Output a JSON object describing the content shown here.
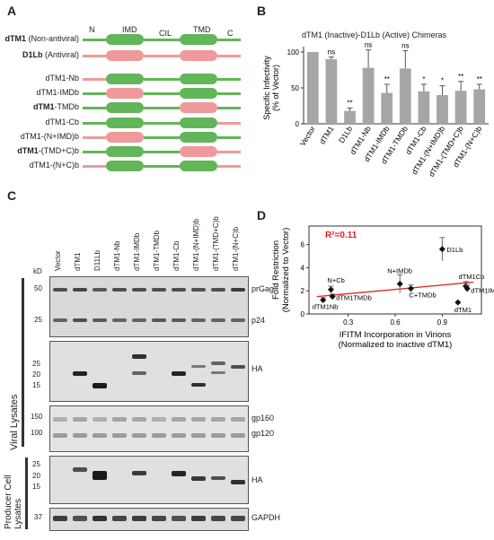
{
  "panels": {
    "A": "A",
    "B": "B",
    "C": "C",
    "D": "D"
  },
  "panelA": {
    "domain_labels": {
      "n": "N",
      "imd": "IMD",
      "cil": "CIL",
      "tmd": "TMD",
      "c": "C"
    },
    "colors": {
      "dtm1": "#62b558",
      "d1lb": "#ef9a9a"
    },
    "constructs": [
      {
        "bold": "dTM1",
        "rest": " (Non-antiviral)",
        "parts": [
          "g",
          "g",
          "g",
          "g",
          "g"
        ]
      },
      {
        "bold": "D1Lb",
        "rest": " (Antiviral)",
        "parts": [
          "p",
          "p",
          "p",
          "p",
          "p"
        ]
      },
      {
        "bold": "",
        "rest": "dTM1-Nb",
        "parts": [
          "p",
          "g",
          "g",
          "g",
          "g"
        ]
      },
      {
        "bold": "",
        "rest": "dTM1-IMDb",
        "parts": [
          "g",
          "p",
          "g",
          "g",
          "g"
        ]
      },
      {
        "bold": "dTM1",
        "rest": "-TMDb",
        "parts": [
          "g",
          "g",
          "g",
          "p",
          "g"
        ]
      },
      {
        "bold": "",
        "rest": "dTM1-Cb",
        "parts": [
          "g",
          "g",
          "g",
          "g",
          "p"
        ]
      },
      {
        "bold": "",
        "rest": "dTM1-(N+IMD)b",
        "parts": [
          "p",
          "p",
          "g",
          "g",
          "g"
        ]
      },
      {
        "bold": "dTM1",
        "rest": "-(TMD+C)b",
        "parts": [
          "g",
          "g",
          "g",
          "p",
          "p"
        ]
      },
      {
        "bold": "",
        "rest": "dTM1-(N+C)b",
        "parts": [
          "p",
          "g",
          "g",
          "g",
          "p"
        ]
      }
    ]
  },
  "panelB": {
    "title": "dTM1 (Inactive)-D1Lb (Active) Chimeras",
    "ylabel": "Specific Infectivity\n(% of Vector)"
  },
  "chart_data": [
    {
      "type": "bar",
      "title": "dTM1 (Inactive)-D1Lb (Active) Chimeras",
      "ylabel": "Specific Infectivity (% of Vector)",
      "ylim": [
        0,
        100
      ],
      "yticks": [
        "0",
        "50",
        "100"
      ],
      "categories": [
        "Vector",
        "dTM1",
        "D1Lb",
        "dTM1-Nb",
        "dTM1-IMDb",
        "dTM1-TMDb",
        "dTM1-Cb",
        "dTM1-(N+IMD)b",
        "dTM1-(TMD+C)b",
        "dTM1-(N+C)b"
      ],
      "values": [
        100,
        90,
        18,
        78,
        43,
        77,
        45,
        40,
        46,
        48
      ],
      "errors": [
        0,
        3,
        4,
        25,
        12,
        25,
        10,
        13,
        13,
        7
      ],
      "significance": [
        "",
        "ns",
        "**",
        "ns",
        "**",
        "ns",
        "*",
        "*",
        "**",
        "**"
      ],
      "bar_color": "#a6a6a6"
    },
    {
      "type": "scatter",
      "xlabel": "IFITM Incorporation in Virions\n(Normalized to inactive dTM1)",
      "ylabel": "Fold Restriction\n(Normalized to Vector)",
      "annotation": "R²=0.11",
      "xticks": [
        "0.3",
        "0.6",
        "0.9"
      ],
      "yticks": [
        "0",
        "2",
        "4",
        "6"
      ],
      "xlim": [
        0.05,
        1.15
      ],
      "ylim": [
        0,
        7.6
      ],
      "points": [
        {
          "label": "D1Lb",
          "x": 0.9,
          "y": 5.6,
          "err": 1.0
        },
        {
          "label": "N+IMDb",
          "x": 0.63,
          "y": 2.6,
          "err": 0.8
        },
        {
          "label": "dTM1Cb",
          "x": 1.05,
          "y": 2.4,
          "err": 0.4
        },
        {
          "label": "dTM1IMDb",
          "x": 1.06,
          "y": 2.2,
          "err": 0.3
        },
        {
          "label": "N+Cb",
          "x": 0.19,
          "y": 2.1,
          "err": 0.3
        },
        {
          "label": "C+TMDb",
          "x": 0.7,
          "y": 2.2,
          "err": 0.3
        },
        {
          "label": "dTM1TMDb",
          "x": 0.2,
          "y": 1.5,
          "err": 0.2
        },
        {
          "label": "dTM1Nb",
          "x": 0.14,
          "y": 1.2,
          "err": 0.2
        },
        {
          "label": "dTM1",
          "x": 1.0,
          "y": 1.0,
          "err": 0.0
        }
      ],
      "trend": {
        "x": [
          0.1,
          1.1
        ],
        "y": [
          1.5,
          2.75
        ],
        "color": "#e02020"
      }
    }
  ],
  "panelC": {
    "lanes": [
      "Vector",
      "dTM1",
      "D11Lb",
      "dTM1-Nb",
      "dTM1-IMDb",
      "dTM1-TMDb",
      "dTM1-Cb",
      "dTM1-(N+IMD)b",
      "dTM1-(TMD+C)b",
      "dTM1-(N+C)b"
    ],
    "kd": "kD",
    "blots": [
      {
        "markers": [
          "50",
          "25"
        ],
        "bands": [
          "prGag",
          "p24"
        ]
      },
      {
        "markers": [
          "25",
          "20",
          "15"
        ],
        "bands": [
          "HA"
        ]
      },
      {
        "markers": [
          "150",
          "100"
        ],
        "bands": [
          "gp160",
          "gp120"
        ]
      },
      {
        "markers": [
          "25",
          "20",
          "15"
        ],
        "bands": [
          "HA"
        ]
      },
      {
        "markers": [
          "37"
        ],
        "bands": [
          "GAPDH"
        ]
      }
    ],
    "viral_lysates": "Viral Lysates",
    "producer_lysates": "Producer Cell\nLysates"
  }
}
